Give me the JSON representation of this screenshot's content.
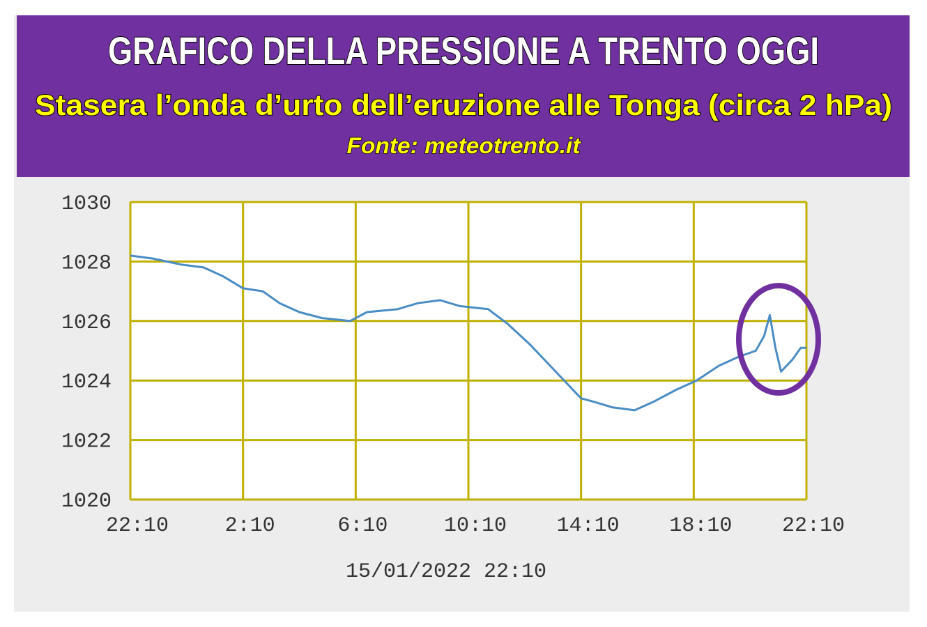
{
  "chart_data": {
    "type": "line",
    "title": "GRAFICO DELLA PRESSIONE A TRENTO OGGI",
    "subtitle": "Stasera l’onda d’urto dell’eruzione alle Tonga (circa 2 hPa)",
    "source": "Fonte: meteotrento.it",
    "x_label": "15/01/2022 22:10",
    "color": "#4a8cc4",
    "grid": true,
    "xlim": [
      0,
      24
    ],
    "xticks": [
      {
        "value": 0,
        "label": "22:10"
      },
      {
        "value": 4,
        "label": "2:10"
      },
      {
        "value": 8,
        "label": "6:10"
      },
      {
        "value": 12,
        "label": "10:10"
      },
      {
        "value": 16,
        "label": "14:10"
      },
      {
        "value": 20,
        "label": "18:10"
      },
      {
        "value": 24,
        "label": "22:10"
      }
    ],
    "ylim": [
      1020,
      1030
    ],
    "yticks": [
      1020,
      1022,
      1024,
      1026,
      1028,
      1030
    ],
    "x": [
      0,
      0.8,
      1.8,
      2.6,
      3.3,
      4,
      4.7,
      5.3,
      6,
      6.8,
      7.8,
      8.4,
      9.5,
      10.2,
      11,
      11.7,
      12.7,
      13.4,
      14.2,
      14.9,
      15.5,
      16,
      16.4,
      17.1,
      17.9,
      18.6,
      19.4,
      20.1,
      20.9,
      21.6,
      22.2,
      22.5,
      22.7,
      22.9,
      23.1,
      23.5,
      23.8,
      24
    ],
    "values": [
      1028.2,
      1028.1,
      1027.9,
      1027.8,
      1027.5,
      1027.1,
      1027.0,
      1026.6,
      1026.3,
      1026.1,
      1026.0,
      1026.3,
      1026.4,
      1026.6,
      1026.7,
      1026.5,
      1026.4,
      1025.9,
      1025.2,
      1024.5,
      1023.9,
      1023.4,
      1023.3,
      1023.1,
      1023.0,
      1023.3,
      1023.7,
      1024.0,
      1024.5,
      1024.8,
      1025.0,
      1025.5,
      1026.2,
      1025.1,
      1024.3,
      1024.7,
      1025.1,
      1025.1
    ]
  }
}
